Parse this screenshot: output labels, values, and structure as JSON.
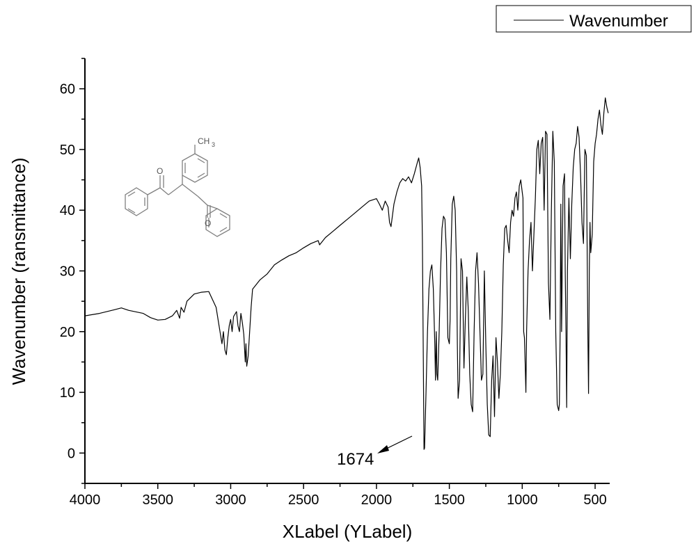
{
  "chart_data": {
    "type": "line",
    "title": "",
    "xlabel": "XLabel (YLabel)",
    "ylabel": "Wavenumber (ransmittance)",
    "xlim": [
      4000,
      400
    ],
    "ylim": [
      -5,
      65
    ],
    "x_reversed": true,
    "grid": false,
    "legend_position": "top-right",
    "x_ticks": [
      4000,
      3500,
      3000,
      2500,
      2000,
      1500,
      1000,
      500
    ],
    "y_ticks": [
      0,
      10,
      20,
      30,
      40,
      50,
      60
    ],
    "series": [
      {
        "name": "Wavenumber",
        "color": "#000000",
        "x": [
          4000,
          3900,
          3800,
          3750,
          3700,
          3600,
          3550,
          3500,
          3450,
          3400,
          3370,
          3350,
          3340,
          3320,
          3300,
          3250,
          3200,
          3150,
          3100,
          3080,
          3060,
          3050,
          3040,
          3030,
          3020,
          3010,
          3000,
          2990,
          2980,
          2960,
          2950,
          2940,
          2930,
          2920,
          2910,
          2900,
          2895,
          2890,
          2880,
          2870,
          2860,
          2850,
          2800,
          2750,
          2700,
          2650,
          2600,
          2550,
          2500,
          2450,
          2400,
          2390,
          2350,
          2300,
          2250,
          2200,
          2150,
          2100,
          2050,
          2000,
          1980,
          1960,
          1940,
          1920,
          1910,
          1900,
          1880,
          1860,
          1840,
          1820,
          1800,
          1780,
          1760,
          1740,
          1720,
          1710,
          1700,
          1690,
          1685,
          1680,
          1674,
          1670,
          1660,
          1650,
          1640,
          1630,
          1620,
          1610,
          1600,
          1595,
          1590,
          1585,
          1580,
          1570,
          1560,
          1550,
          1540,
          1530,
          1520,
          1510,
          1500,
          1495,
          1490,
          1480,
          1470,
          1460,
          1450,
          1445,
          1440,
          1430,
          1420,
          1410,
          1400,
          1390,
          1380,
          1370,
          1360,
          1350,
          1340,
          1330,
          1320,
          1310,
          1300,
          1290,
          1280,
          1270,
          1260,
          1250,
          1240,
          1230,
          1220,
          1210,
          1200,
          1190,
          1180,
          1170,
          1160,
          1150,
          1140,
          1130,
          1120,
          1110,
          1100,
          1090,
          1080,
          1070,
          1060,
          1050,
          1040,
          1030,
          1020,
          1010,
          1000,
          995,
          990,
          985,
          980,
          975,
          970,
          960,
          950,
          940,
          930,
          920,
          910,
          900,
          890,
          880,
          870,
          860,
          850,
          840,
          830,
          820,
          810,
          800,
          790,
          780,
          770,
          760,
          750,
          745,
          740,
          735,
          730,
          720,
          710,
          705,
          700,
          695,
          690,
          680,
          670,
          660,
          650,
          640,
          630,
          620,
          610,
          600,
          590,
          580,
          570,
          560,
          550,
          545,
          540,
          535,
          530,
          520,
          510,
          500,
          490,
          480,
          470,
          460,
          450,
          440,
          430,
          420,
          410
        ],
        "y": [
          22.6,
          23.0,
          23.6,
          23.9,
          23.5,
          23.0,
          22.3,
          21.9,
          22.0,
          22.6,
          23.5,
          22.2,
          24.0,
          23.2,
          25.0,
          26.2,
          26.5,
          26.6,
          24.0,
          21.0,
          18.0,
          20.0,
          17.0,
          16.2,
          19.0,
          21.0,
          22.0,
          20.0,
          22.5,
          23.3,
          21.0,
          20.0,
          23.0,
          21.5,
          19.5,
          15.0,
          18.0,
          14.3,
          16.0,
          20.0,
          24.0,
          27.0,
          28.5,
          29.5,
          31.0,
          31.8,
          32.5,
          33.0,
          33.8,
          34.5,
          35.0,
          34.3,
          35.5,
          36.5,
          37.5,
          38.5,
          39.5,
          40.5,
          41.5,
          41.9,
          41.0,
          40.0,
          41.5,
          40.5,
          38.0,
          37.3,
          41.0,
          43.0,
          44.5,
          45.2,
          44.8,
          45.5,
          44.5,
          46.0,
          47.8,
          48.6,
          47.0,
          44.0,
          35.0,
          20.0,
          0.6,
          0.8,
          10.0,
          20.0,
          27.0,
          30.0,
          31.0,
          27.0,
          18.0,
          12.0,
          20.0,
          13.0,
          12.0,
          20.0,
          30.0,
          37.0,
          39.0,
          38.5,
          33.0,
          19.0,
          18.0,
          22.0,
          32.0,
          41.0,
          42.3,
          40.0,
          30.0,
          18.0,
          9.0,
          12.0,
          32.0,
          30.0,
          14.0,
          22.0,
          29.0,
          23.5,
          13.0,
          8.0,
          6.8,
          20.0,
          30.0,
          33.0,
          28.0,
          20.0,
          12.0,
          13.0,
          30.0,
          18.0,
          8.0,
          3.0,
          2.7,
          12.0,
          16.0,
          6.0,
          19.0,
          15.0,
          9.0,
          13.0,
          20.0,
          31.0,
          37.0,
          37.5,
          35.0,
          33.0,
          38.0,
          40.0,
          39.0,
          42.0,
          43.0,
          40.0,
          44.0,
          45.0,
          43.0,
          42.0,
          20.0,
          19.0,
          15.0,
          10.0,
          20.0,
          30.0,
          35.0,
          38.0,
          30.0,
          36.0,
          42.0,
          50.0,
          51.5,
          46.0,
          51.0,
          52.0,
          40.0,
          53.0,
          52.5,
          28.0,
          22.0,
          40.0,
          53.0,
          48.0,
          20.0,
          8.0,
          7.0,
          8.0,
          20.0,
          41.0,
          20.0,
          44.0,
          46.0,
          30.0,
          20.0,
          7.5,
          30.0,
          42.0,
          32.0,
          41.0,
          47.0,
          50.0,
          51.0,
          53.8,
          52.0,
          46.0,
          38.0,
          34.5,
          50.0,
          49.0,
          20.0,
          9.8,
          30.0,
          38.0,
          33.0,
          36.0,
          48.0,
          51.0,
          52.5,
          55.0,
          56.5,
          54.0,
          52.5,
          56.0,
          58.5,
          57.0,
          56.0
        ]
      }
    ],
    "annotations": [
      {
        "text": "1674",
        "arrow_to_x": 1674,
        "arrow_to_y": 0.6
      }
    ],
    "inset_structure": {
      "label_methyl": "CH",
      "label_methyl_sub": "3",
      "label_o1": "O",
      "label_o2": "O"
    }
  }
}
